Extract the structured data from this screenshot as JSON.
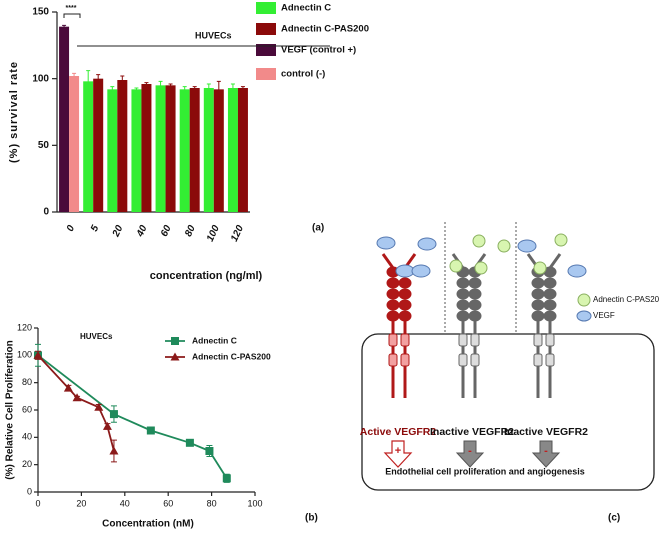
{
  "chart_data": [
    {
      "type": "bar",
      "ylabel": "(%) survival rate",
      "xlabel": "concentration (ng/ml)",
      "annotations": [
        "****",
        "HUVECs"
      ],
      "categories": [
        "0",
        "5",
        "20",
        "40",
        "60",
        "80",
        "100",
        "120"
      ],
      "series": [
        {
          "name": "Adnectin C",
          "color": "#33ee33",
          "values": [
            null,
            98,
            92,
            92,
            95,
            92,
            93,
            93
          ],
          "errors": [
            null,
            8,
            2,
            1,
            3,
            2,
            3,
            3
          ]
        },
        {
          "name": "Adnectin C-PAS200",
          "color": "#8b0a0a",
          "values": [
            null,
            100,
            99,
            96,
            95,
            93,
            92,
            93
          ],
          "errors": [
            null,
            3,
            3,
            1,
            1,
            1,
            6,
            1
          ]
        },
        {
          "name": "VEGF (control +)",
          "color": "#4a0a3a",
          "values": [
            139,
            null,
            null,
            null,
            null,
            null,
            null,
            null
          ],
          "errors": [
            1,
            null,
            null,
            null,
            null,
            null,
            null,
            null
          ]
        },
        {
          "name": "control (-)",
          "color": "#f28a8a",
          "values": [
            102,
            null,
            null,
            null,
            null,
            null,
            null,
            null
          ],
          "errors": [
            2,
            null,
            null,
            null,
            null,
            null,
            null,
            null
          ]
        }
      ],
      "ylim": [
        0,
        150
      ],
      "yticks": [
        0,
        50,
        100,
        150
      ],
      "grid": false
    },
    {
      "type": "line",
      "ylabel": "(%) Relative Cell Proliferation",
      "xlabel": "Concentration (nM)",
      "annotations": [
        "HUVECs"
      ],
      "series": [
        {
          "name": "Adnectin C",
          "color": "#1f8a5b",
          "marker": "square",
          "x": [
            0,
            35,
            52,
            70,
            79,
            87
          ],
          "values": [
            100,
            57,
            45,
            36,
            30,
            10
          ],
          "errors": [
            8,
            6,
            1,
            2,
            4,
            3
          ]
        },
        {
          "name": "Adnectin C-PAS200",
          "color": "#8b1a1a",
          "marker": "triangle",
          "x": [
            0,
            14,
            18,
            28,
            32,
            35
          ],
          "values": [
            100,
            76,
            69,
            62,
            48,
            30
          ],
          "errors": [
            3,
            2,
            1,
            2,
            2,
            8
          ]
        }
      ],
      "xlim": [
        0,
        100
      ],
      "xticks": [
        0,
        20,
        40,
        60,
        80,
        100
      ],
      "ylim": [
        0,
        120
      ],
      "yticks": [
        0,
        20,
        40,
        60,
        80,
        100,
        120
      ],
      "grid": false
    }
  ],
  "panel_labels": [
    "(a)",
    "(b)",
    "(c)"
  ],
  "diagram": {
    "legend": [
      "Adnectin C-PAS200",
      "VEGF"
    ],
    "receptors": [
      {
        "label": "Active VEGFR2",
        "sign": "+"
      },
      {
        "label": "Inactive VEGFR2",
        "sign": "-"
      },
      {
        "label": "Inactive VEGFR2",
        "sign": "-"
      }
    ],
    "caption": "Endothelial cell proliferation and angiogenesis"
  }
}
